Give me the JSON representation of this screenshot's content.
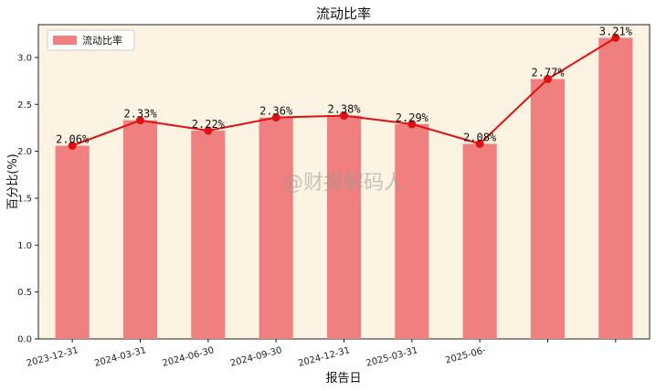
{
  "chart_data": {
    "type": "bar",
    "title": "流动比率",
    "xlabel": "报告日",
    "ylabel": "百分比(%)",
    "ylim": [
      0,
      3.35
    ],
    "yticks": [
      "0.0",
      "0.5",
      "1.0",
      "1.5",
      "2.0",
      "2.5",
      "3.0"
    ],
    "categories": [
      "2023-12-31",
      "2024-03-31",
      "2024-06-30",
      "2024-09-30",
      "2024-12-31",
      "2025-03-31",
      "2025-06-",
      "",
      ""
    ],
    "values": [
      2.06,
      2.33,
      2.22,
      2.36,
      2.38,
      2.29,
      2.08,
      2.77,
      3.21
    ],
    "data_labels": [
      "2.06%",
      "2.33%",
      "2.22%",
      "2.36%",
      "2.38%",
      "2.29%",
      "2.08%",
      "2.77%",
      "3.21%"
    ],
    "series": [
      {
        "name": "流动比率",
        "type": "bar",
        "color": "#f08080"
      },
      {
        "type": "line",
        "color": "#e01010"
      }
    ],
    "legend": {
      "position": "top-left",
      "entries": [
        "流动比率"
      ]
    },
    "grid": false,
    "background": "#fdf3e3",
    "watermark": "@财报解码人"
  }
}
